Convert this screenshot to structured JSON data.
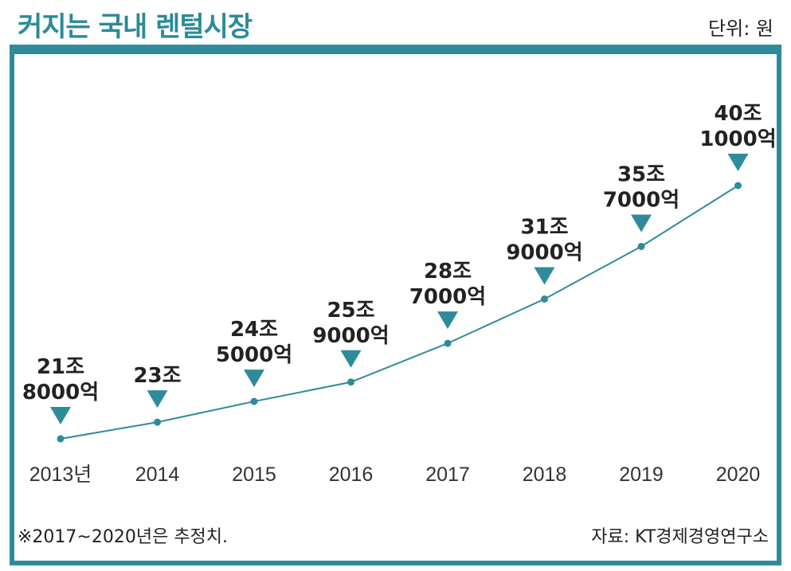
{
  "header": {
    "title": "커지는 국내 렌털시장",
    "unit": "단위: 원"
  },
  "footer": {
    "note": "※2017~2020년은 추정치.",
    "source": "자료: KT경제경영연구소"
  },
  "colors": {
    "accent": "#2e8b9b",
    "line": "#2e8b9b",
    "text": "#222222"
  },
  "chart_data": {
    "type": "line",
    "title": "커지는 국내 렌털시장",
    "unit": "단위: 원",
    "categories": [
      "2013년",
      "2014",
      "2015",
      "2016",
      "2017",
      "2018",
      "2019",
      "2020"
    ],
    "values_won_trillion": [
      21.8,
      23,
      24.5,
      25.9,
      28.7,
      31.9,
      35.7,
      40.1
    ],
    "data_labels": [
      [
        "21조",
        "8000억"
      ],
      [
        "23조"
      ],
      [
        "24조",
        "5000억"
      ],
      [
        "25조",
        "9000억"
      ],
      [
        "28조",
        "7000억"
      ],
      [
        "31조",
        "9000억"
      ],
      [
        "35조",
        "7000억"
      ],
      [
        "40조",
        "1000억"
      ]
    ],
    "markers": "dot",
    "label_pointer": "triangle-down",
    "grid": false,
    "legend": "none"
  }
}
